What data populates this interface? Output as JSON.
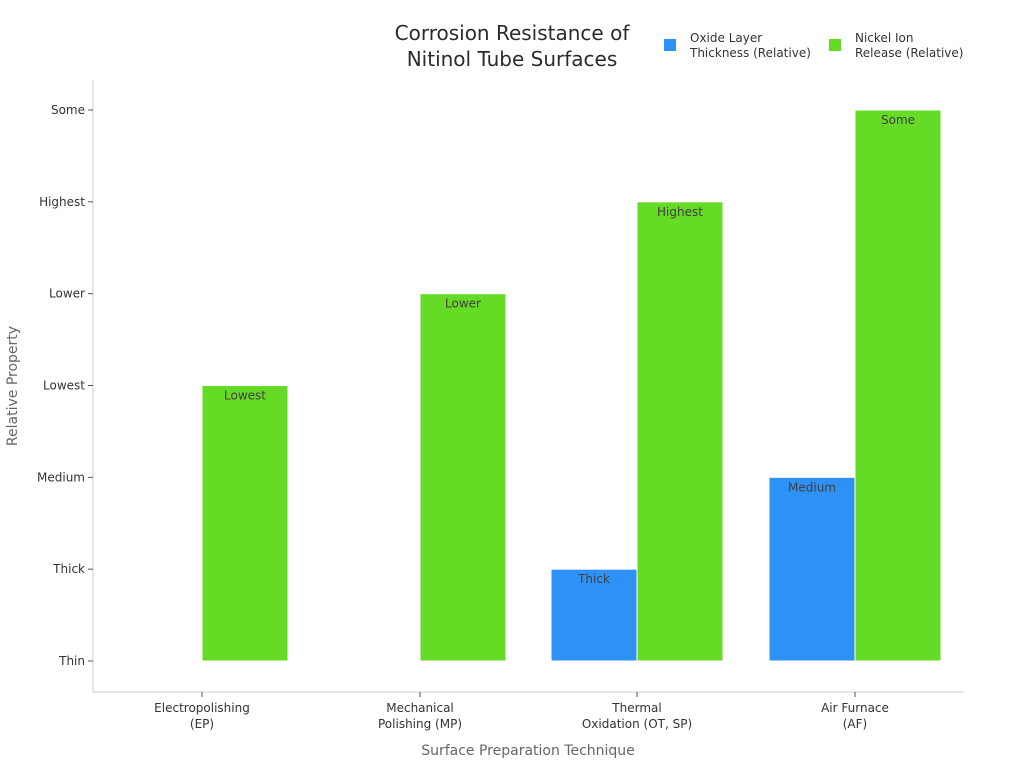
{
  "chart_data": {
    "type": "bar",
    "title": "Corrosion Resistance of\nNitinol Tube Surfaces",
    "xlabel": "Surface Preparation Technique",
    "ylabel": "Relative Property",
    "categories": [
      "Electropolishing\n(EP)",
      "Mechanical\nPolishing (MP)",
      "Thermal\nOxidation (OT, SP)",
      "Air Furnace\n(AF)"
    ],
    "y_tick_labels": [
      "Thin",
      "Thick",
      "Medium",
      "Lowest",
      "Lower",
      "Highest",
      "Some"
    ],
    "ylim": [
      0,
      6
    ],
    "grid": false,
    "legend_position": "top-right",
    "series": [
      {
        "name": "Oxide Layer\nThickness (Relative)",
        "color": "#2e91f5",
        "values": [
          null,
          null,
          1,
          2
        ],
        "data_labels": [
          "",
          "",
          "Thick",
          "Medium"
        ]
      },
      {
        "name": "Nickel Ion\nRelease (Relative)",
        "color": "#66db26",
        "values": [
          3,
          4,
          5,
          6
        ],
        "data_labels": [
          "Lowest",
          "Lower",
          "Highest",
          "Some"
        ]
      }
    ]
  }
}
